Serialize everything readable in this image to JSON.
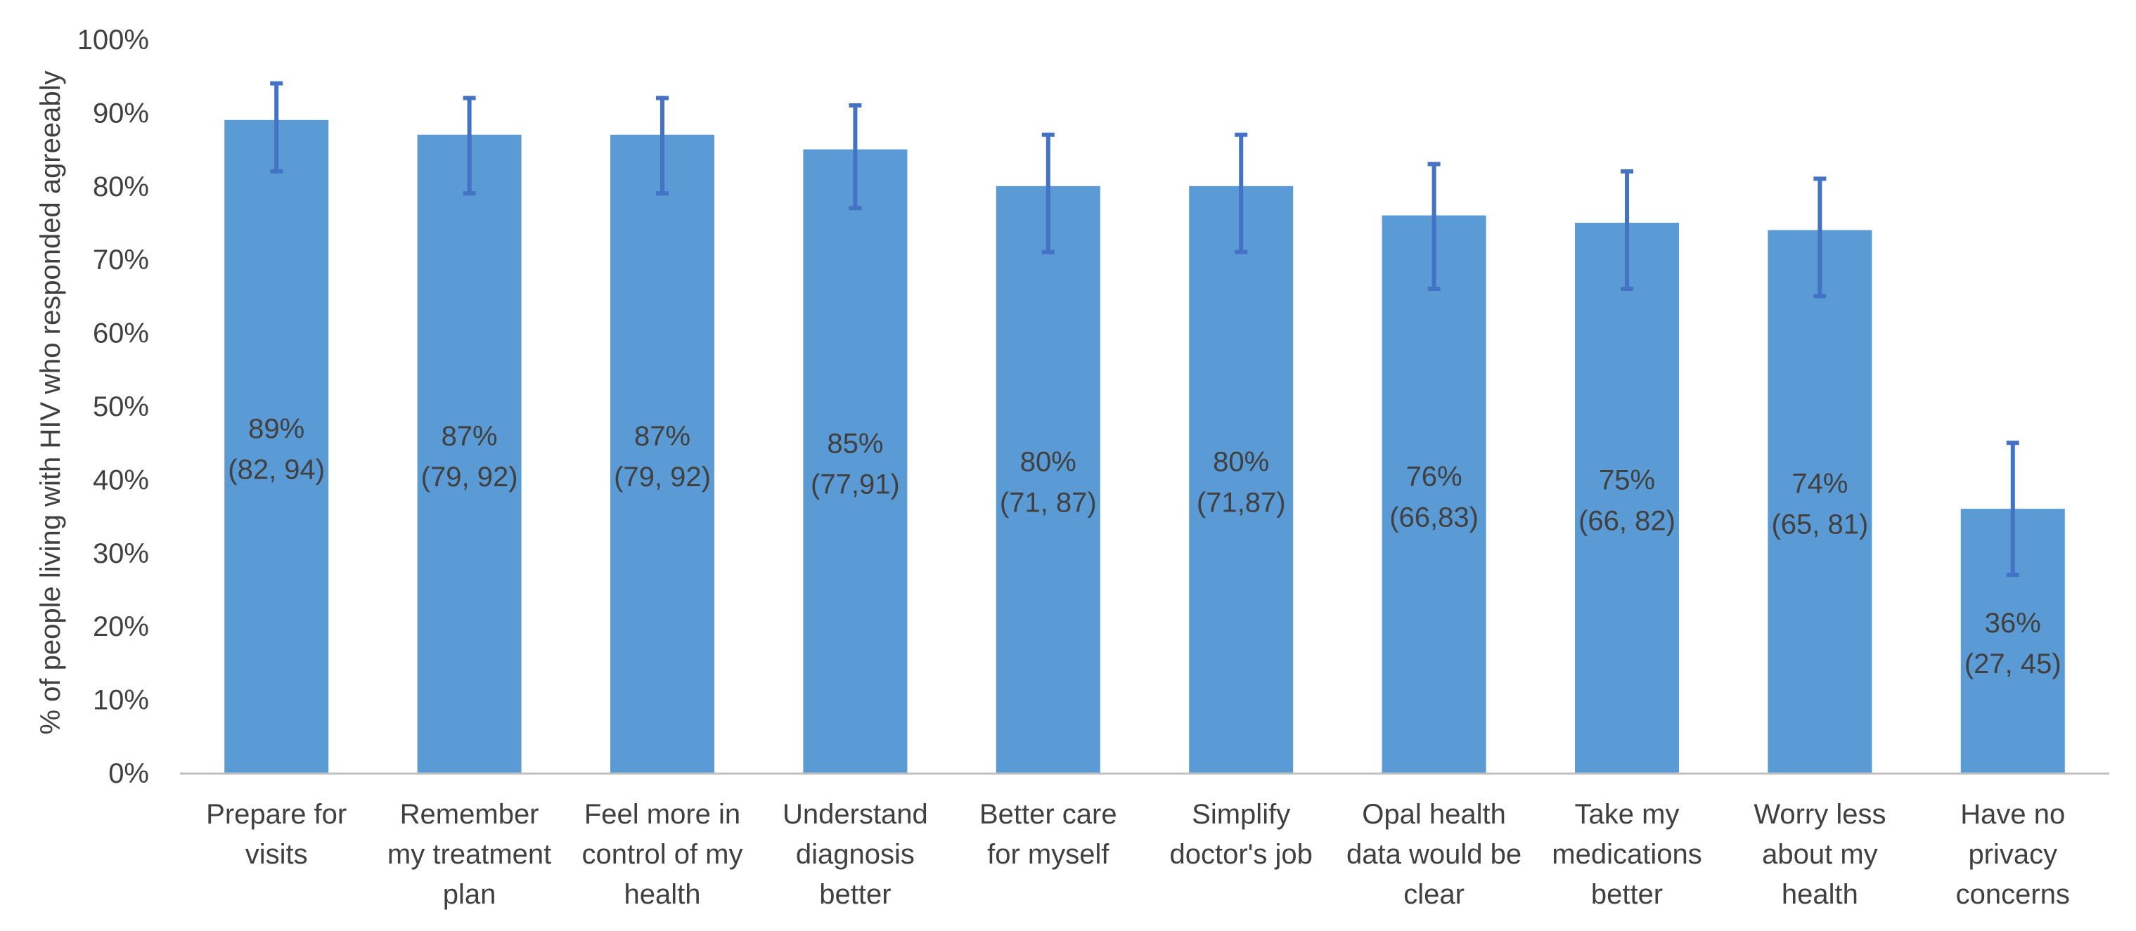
{
  "chart_data": {
    "type": "bar",
    "title": "",
    "xlabel": "",
    "ylabel": "% of people living with HIV who responded agreeably",
    "ylim": [
      0,
      100
    ],
    "y_ticks": [
      "0%",
      "10%",
      "20%",
      "30%",
      "40%",
      "50%",
      "60%",
      "70%",
      "80%",
      "90%",
      "100%"
    ],
    "categories": [
      [
        "Prepare for",
        "visits"
      ],
      [
        "Remember",
        "my treatment",
        "plan"
      ],
      [
        "Feel more in",
        "control of my",
        "health"
      ],
      [
        "Understand",
        "diagnosis",
        "better"
      ],
      [
        "Better care",
        "for myself"
      ],
      [
        "Simplify",
        "doctor's job"
      ],
      [
        "Opal health",
        "data would be",
        "clear"
      ],
      [
        "Take my",
        "medications",
        "better"
      ],
      [
        "Worry less",
        "about my",
        "health"
      ],
      [
        "Have no",
        "privacy",
        "concerns"
      ]
    ],
    "values": [
      89,
      87,
      87,
      85,
      80,
      80,
      76,
      75,
      74,
      36
    ],
    "ci_low": [
      82,
      79,
      79,
      77,
      71,
      71,
      66,
      66,
      65,
      27
    ],
    "ci_high": [
      94,
      92,
      92,
      91,
      87,
      87,
      83,
      82,
      81,
      45
    ],
    "value_labels": [
      "89%",
      "87%",
      "87%",
      "85%",
      "80%",
      "80%",
      "76%",
      "75%",
      "74%",
      "36%"
    ],
    "ci_labels": [
      "(82, 94)",
      "(79, 92)",
      "(79, 92)",
      "(77,91)",
      "(71, 87)",
      "(71,87)",
      "(66,83)",
      "(66, 82)",
      "(65, 81)",
      "(27, 45)"
    ],
    "colors": {
      "bar": "#5B9BD5",
      "error_bar": "#4472C4",
      "axis": "#BFBFBF",
      "text": "#404040"
    }
  }
}
